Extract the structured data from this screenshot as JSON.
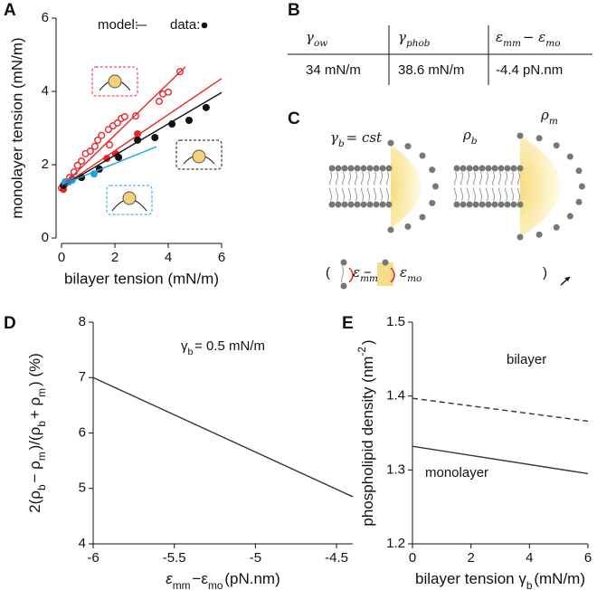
{
  "panels": [
    "A",
    "B",
    "C",
    "D",
    "E"
  ],
  "table": {
    "headers": [
      [
        "γ",
        {
          "sub": "ow"
        }
      ],
      [
        "γ",
        {
          "sub": "phob"
        }
      ],
      [
        "ε",
        {
          "sub": "mm"
        },
        " − ε",
        {
          "sub": "mo"
        }
      ]
    ],
    "rows": [
      [
        "34 mN/m",
        "38.6 mN/m",
        "-4.4 pN.nm"
      ]
    ]
  },
  "diagram": {
    "labels": {
      "gamma_b": [
        "γ",
        {
          "sub": "b"
        },
        " = cst"
      ],
      "rho_b": [
        "ρ",
        {
          "sub": "b"
        }
      ],
      "rho_m": [
        "ρ",
        {
          "sub": "m"
        }
      ],
      "open": "(",
      "eps_mm": [
        "ε",
        {
          "sub": "mm"
        }
      ],
      "minus": "−",
      "eps_mo": [
        "ε",
        {
          "sub": "mo"
        }
      ],
      "close": ")"
    }
  },
  "chart_data": [
    {
      "type": "scatter",
      "xlabel": "bilayer tension (mN/m)",
      "ylabel": "monolayer tension (mN/m)",
      "xlim": [
        0,
        6
      ],
      "ylim": [
        0,
        6
      ],
      "xticks": [
        0,
        2,
        4,
        6
      ],
      "yticks": [
        0,
        2,
        4,
        6
      ],
      "legend": [
        {
          "label": "model:"
        },
        {
          "label": "data:"
        }
      ],
      "series": [
        {
          "color": "#e8262a",
          "marker": "open",
          "x": [
            0,
            0.14,
            0.3,
            0.47,
            0.6,
            0.75,
            0.9,
            1.08,
            1.25,
            1.36,
            1.5,
            1.76,
            1.8,
            1.93,
            2.1,
            2.24,
            2.37,
            2.78,
            3.66,
            3.8,
            4.0,
            4.44
          ],
          "values": [
            1.36,
            1.48,
            1.65,
            1.8,
            1.98,
            2.1,
            2.3,
            2.37,
            2.5,
            2.67,
            2.8,
            2.96,
            2.54,
            3.06,
            3.14,
            3.26,
            3.31,
            3.33,
            3.73,
            3.93,
            3.98,
            4.54
          ]
        },
        {
          "color": "#e8262a",
          "marker": "filled",
          "x": [
            0.07,
            1.7,
            2.03,
            2.85
          ],
          "values": [
            1.33,
            2.17,
            2.3,
            2.84
          ]
        },
        {
          "color": "#111111",
          "marker": "filled",
          "x": [
            0.07,
            0.4,
            0.75,
            1.42,
            2.14,
            2.85,
            3.5,
            4.14,
            4.78,
            5.42
          ],
          "values": [
            1.43,
            1.6,
            1.65,
            1.88,
            2.2,
            2.67,
            2.74,
            3.11,
            3.21,
            3.56
          ]
        },
        {
          "color": "#1aa3e0",
          "marker": "filled",
          "x": [
            0.14,
            0.27,
            0.4,
            1.22
          ],
          "values": [
            1.53,
            1.53,
            1.58,
            1.75
          ]
        },
        {
          "color": "#e8262a",
          "x": [
            0,
            4.64
          ],
          "values": [
            1.4,
            4.67
          ]
        },
        {
          "color": "#e8262a",
          "x": [
            0,
            6
          ],
          "values": [
            1.4,
            4.35
          ]
        },
        {
          "color": "#111111",
          "x": [
            0,
            6
          ],
          "values": [
            1.4,
            3.97
          ]
        },
        {
          "color": "#1aa3e0",
          "x": [
            0,
            3.56
          ],
          "values": [
            1.45,
            2.49
          ]
        }
      ]
    },
    {
      "type": "line",
      "xlabel": [
        {
          "text": "ε"
        },
        {
          "sub": "mm"
        },
        "−ε",
        {
          "sub": "mo"
        },
        "  (pN.nm)"
      ],
      "ylabel": [
        "2(ρ",
        {
          "sub": "b"
        },
        "− ρ",
        {
          "sub": "m"
        },
        ")/(ρ",
        {
          "sub": "b"
        },
        "+ ρ",
        {
          "sub": "m"
        },
        ") (%)"
      ],
      "annotation": [
        "γ",
        {
          "sub": "b"
        },
        " = 0.5 mN/m"
      ],
      "xlim": [
        -6,
        -4.4
      ],
      "ylim": [
        4,
        8
      ],
      "xticks": [
        -6,
        -5.5,
        -5,
        -4.5
      ],
      "yticks": [
        4,
        5,
        6,
        7,
        8
      ],
      "series": [
        {
          "color": "#333333",
          "x": [
            -6,
            -4.4
          ],
          "values": [
            7,
            4.85
          ]
        }
      ]
    },
    {
      "type": "line",
      "xlabel": [
        "bilayer tension γ",
        {
          "sub": "b"
        },
        " (mN/m)"
      ],
      "ylabel": [
        "phospholipid density (nm",
        {
          "sup": "-2"
        },
        ")"
      ],
      "xlim": [
        0,
        6
      ],
      "ylim": [
        1.2,
        1.5
      ],
      "xticks": [
        0,
        2,
        4,
        6
      ],
      "yticks": [
        1.2,
        1.3,
        1.4,
        1.5
      ],
      "series": [
        {
          "name": "bilayer",
          "color": "#333333",
          "dash": true,
          "x": [
            0,
            6
          ],
          "values": [
            1.397,
            1.366
          ]
        },
        {
          "name": "monolayer",
          "color": "#333333",
          "x": [
            0,
            6
          ],
          "values": [
            1.332,
            1.295
          ]
        }
      ]
    }
  ]
}
